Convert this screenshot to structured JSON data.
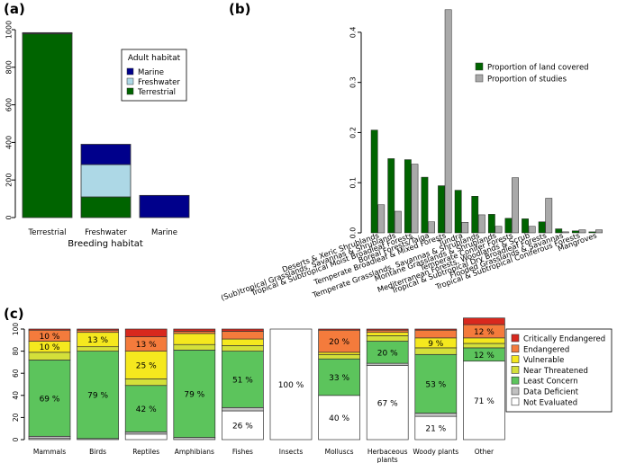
{
  "chart_data": [
    {
      "panel": "(a)",
      "type": "bar",
      "stacked": true,
      "xlabel": "Breeding habitat",
      "ylabel": "",
      "ylim": [
        0,
        1000
      ],
      "yticks": [
        "0",
        "200",
        "400",
        "600",
        "800",
        "1000"
      ],
      "categories": [
        "Terrestrial",
        "Freshwater",
        "Marine"
      ],
      "legend_title": "Adult habitat",
      "legend_position": "right",
      "series": [
        {
          "name": "Terrestrial",
          "color": "#006400",
          "values": [
            978,
            110,
            0
          ]
        },
        {
          "name": "Freshwater",
          "color": "#ADD8E6",
          "values": [
            2,
            172,
            0
          ]
        },
        {
          "name": "Marine",
          "color": "#00008B",
          "values": [
            4,
            108,
            118
          ]
        }
      ]
    },
    {
      "panel": "(b)",
      "type": "bar",
      "grouped": true,
      "ylim": [
        0,
        0.45
      ],
      "yticks": [
        "0.0",
        "0.1",
        "0.2",
        "0.3",
        "0.4"
      ],
      "legend_position": "top-right",
      "categories": [
        "Deserts & Xeric Shrublands",
        "(Sub)tropical Grasslands, Savannas & Shrublands",
        "Tropical & Subtropical Moist Broadleaf Forests",
        "Boreal Forests/Taiga",
        "Temperate Broadleaf & Mixed Forests",
        "Tundra",
        "Temperate Grasslands, Savannas & Shrublands",
        "Montane Grasslands & Shrublands",
        "Temperate Conifer Forests",
        "Mediterranean Forests, Woodlands & Scrub",
        "Tropical & Subtropical Dry Broadleaf Forests",
        "Flooded Grasslands & Savannas",
        "Tropical & Subtropical Coniferous Forests",
        "Mangroves"
      ],
      "series": [
        {
          "name": "Proportion of land covered",
          "color": "#006400",
          "values": [
            0.205,
            0.148,
            0.146,
            0.111,
            0.094,
            0.085,
            0.073,
            0.037,
            0.029,
            0.028,
            0.022,
            0.008,
            0.004,
            0.002
          ]
        },
        {
          "name": "Proportion of studies",
          "color": "#A9A9A9",
          "values": [
            0.056,
            0.043,
            0.137,
            0.022,
            0.445,
            0.021,
            0.036,
            0.013,
            0.11,
            0.013,
            0.069,
            0.002,
            0.006,
            0.006
          ]
        }
      ]
    },
    {
      "panel": "(c)",
      "type": "bar",
      "stacked": true,
      "ylim": [
        0,
        100
      ],
      "yticks": [
        "0",
        "20",
        "40",
        "60",
        "80",
        "100"
      ],
      "categories": [
        "Mammals",
        "Birds",
        "Reptiles",
        "Amphibians",
        "Fishes",
        "Insects",
        "Molluscs",
        "Herbaceous plants",
        "Woody plants",
        "Other"
      ],
      "category_lines": [
        [
          "Mammals"
        ],
        [
          "Birds"
        ],
        [
          "Reptiles"
        ],
        [
          "Amphibians"
        ],
        [
          "Fishes"
        ],
        [
          "Insects"
        ],
        [
          "Molluscs"
        ],
        [
          "Herbaceous",
          "plants"
        ],
        [
          "Woody plants"
        ],
        [
          "Other"
        ]
      ],
      "legend_position": "right",
      "series": [
        {
          "name": "Not Evaluated",
          "color": "#FFFFFF",
          "values": [
            1,
            0,
            5,
            0,
            26,
            100,
            40,
            67,
            21,
            71
          ]
        },
        {
          "name": "Data Deficient",
          "color": "#C0C0C0",
          "values": [
            2,
            1,
            2,
            2,
            3,
            0,
            0,
            2,
            3,
            0
          ]
        },
        {
          "name": "Least Concern",
          "color": "#5CC45C",
          "values": [
            69,
            79,
            42,
            79,
            51,
            0,
            33,
            20,
            53,
            12
          ]
        },
        {
          "name": "Near Threatened",
          "color": "#D4E03A",
          "values": [
            7,
            4,
            6,
            5,
            5,
            0,
            4,
            5,
            6,
            4
          ]
        },
        {
          "name": "Vulnerable",
          "color": "#F5E81E",
          "values": [
            10,
            13,
            25,
            10,
            6,
            0,
            2,
            3,
            9,
            5
          ]
        },
        {
          "name": "Endangered",
          "color": "#F47B3C",
          "values": [
            10,
            2,
            13,
            2,
            7,
            0,
            20,
            2,
            7,
            12
          ]
        },
        {
          "name": "Critically Endangered",
          "color": "#D8281E",
          "values": [
            1,
            1,
            7,
            2,
            2,
            0,
            1,
            1,
            1,
            6
          ]
        }
      ],
      "data_labels": [
        {
          "category": "Mammals",
          "series": "Least Concern",
          "text": "69 %"
        },
        {
          "category": "Mammals",
          "series": "Vulnerable",
          "text": "10 %"
        },
        {
          "category": "Mammals",
          "series": "Endangered",
          "text": "10 %"
        },
        {
          "category": "Birds",
          "series": "Least Concern",
          "text": "79 %"
        },
        {
          "category": "Birds",
          "series": "Vulnerable",
          "text": "13 %"
        },
        {
          "category": "Reptiles",
          "series": "Least Concern",
          "text": "42 %"
        },
        {
          "category": "Reptiles",
          "series": "Vulnerable",
          "text": "25 %"
        },
        {
          "category": "Reptiles",
          "series": "Endangered",
          "text": "13 %"
        },
        {
          "category": "Amphibians",
          "series": "Least Concern",
          "text": "79 %"
        },
        {
          "category": "Fishes",
          "series": "Least Concern",
          "text": "51 %"
        },
        {
          "category": "Fishes",
          "series": "Not Evaluated",
          "text": "26 %"
        },
        {
          "category": "Insects",
          "series": "Not Evaluated",
          "text": "100 %"
        },
        {
          "category": "Molluscs",
          "series": "Endangered",
          "text": "20 %"
        },
        {
          "category": "Molluscs",
          "series": "Least Concern",
          "text": "33 %"
        },
        {
          "category": "Molluscs",
          "series": "Not Evaluated",
          "text": "40 %"
        },
        {
          "category": "Herbaceous plants",
          "series": "Least Concern",
          "text": "20 %"
        },
        {
          "category": "Herbaceous plants",
          "series": "Not Evaluated",
          "text": "67 %"
        },
        {
          "category": "Woody plants",
          "series": "Vulnerable",
          "text": "9 %"
        },
        {
          "category": "Woody plants",
          "series": "Least Concern",
          "text": "53 %"
        },
        {
          "category": "Woody plants",
          "series": "Not Evaluated",
          "text": "21 %"
        },
        {
          "category": "Other",
          "series": "Endangered",
          "text": "12 %"
        },
        {
          "category": "Other",
          "series": "Least Concern",
          "text": "12 %"
        },
        {
          "category": "Other",
          "series": "Not Evaluated",
          "text": "71 %"
        }
      ]
    }
  ]
}
